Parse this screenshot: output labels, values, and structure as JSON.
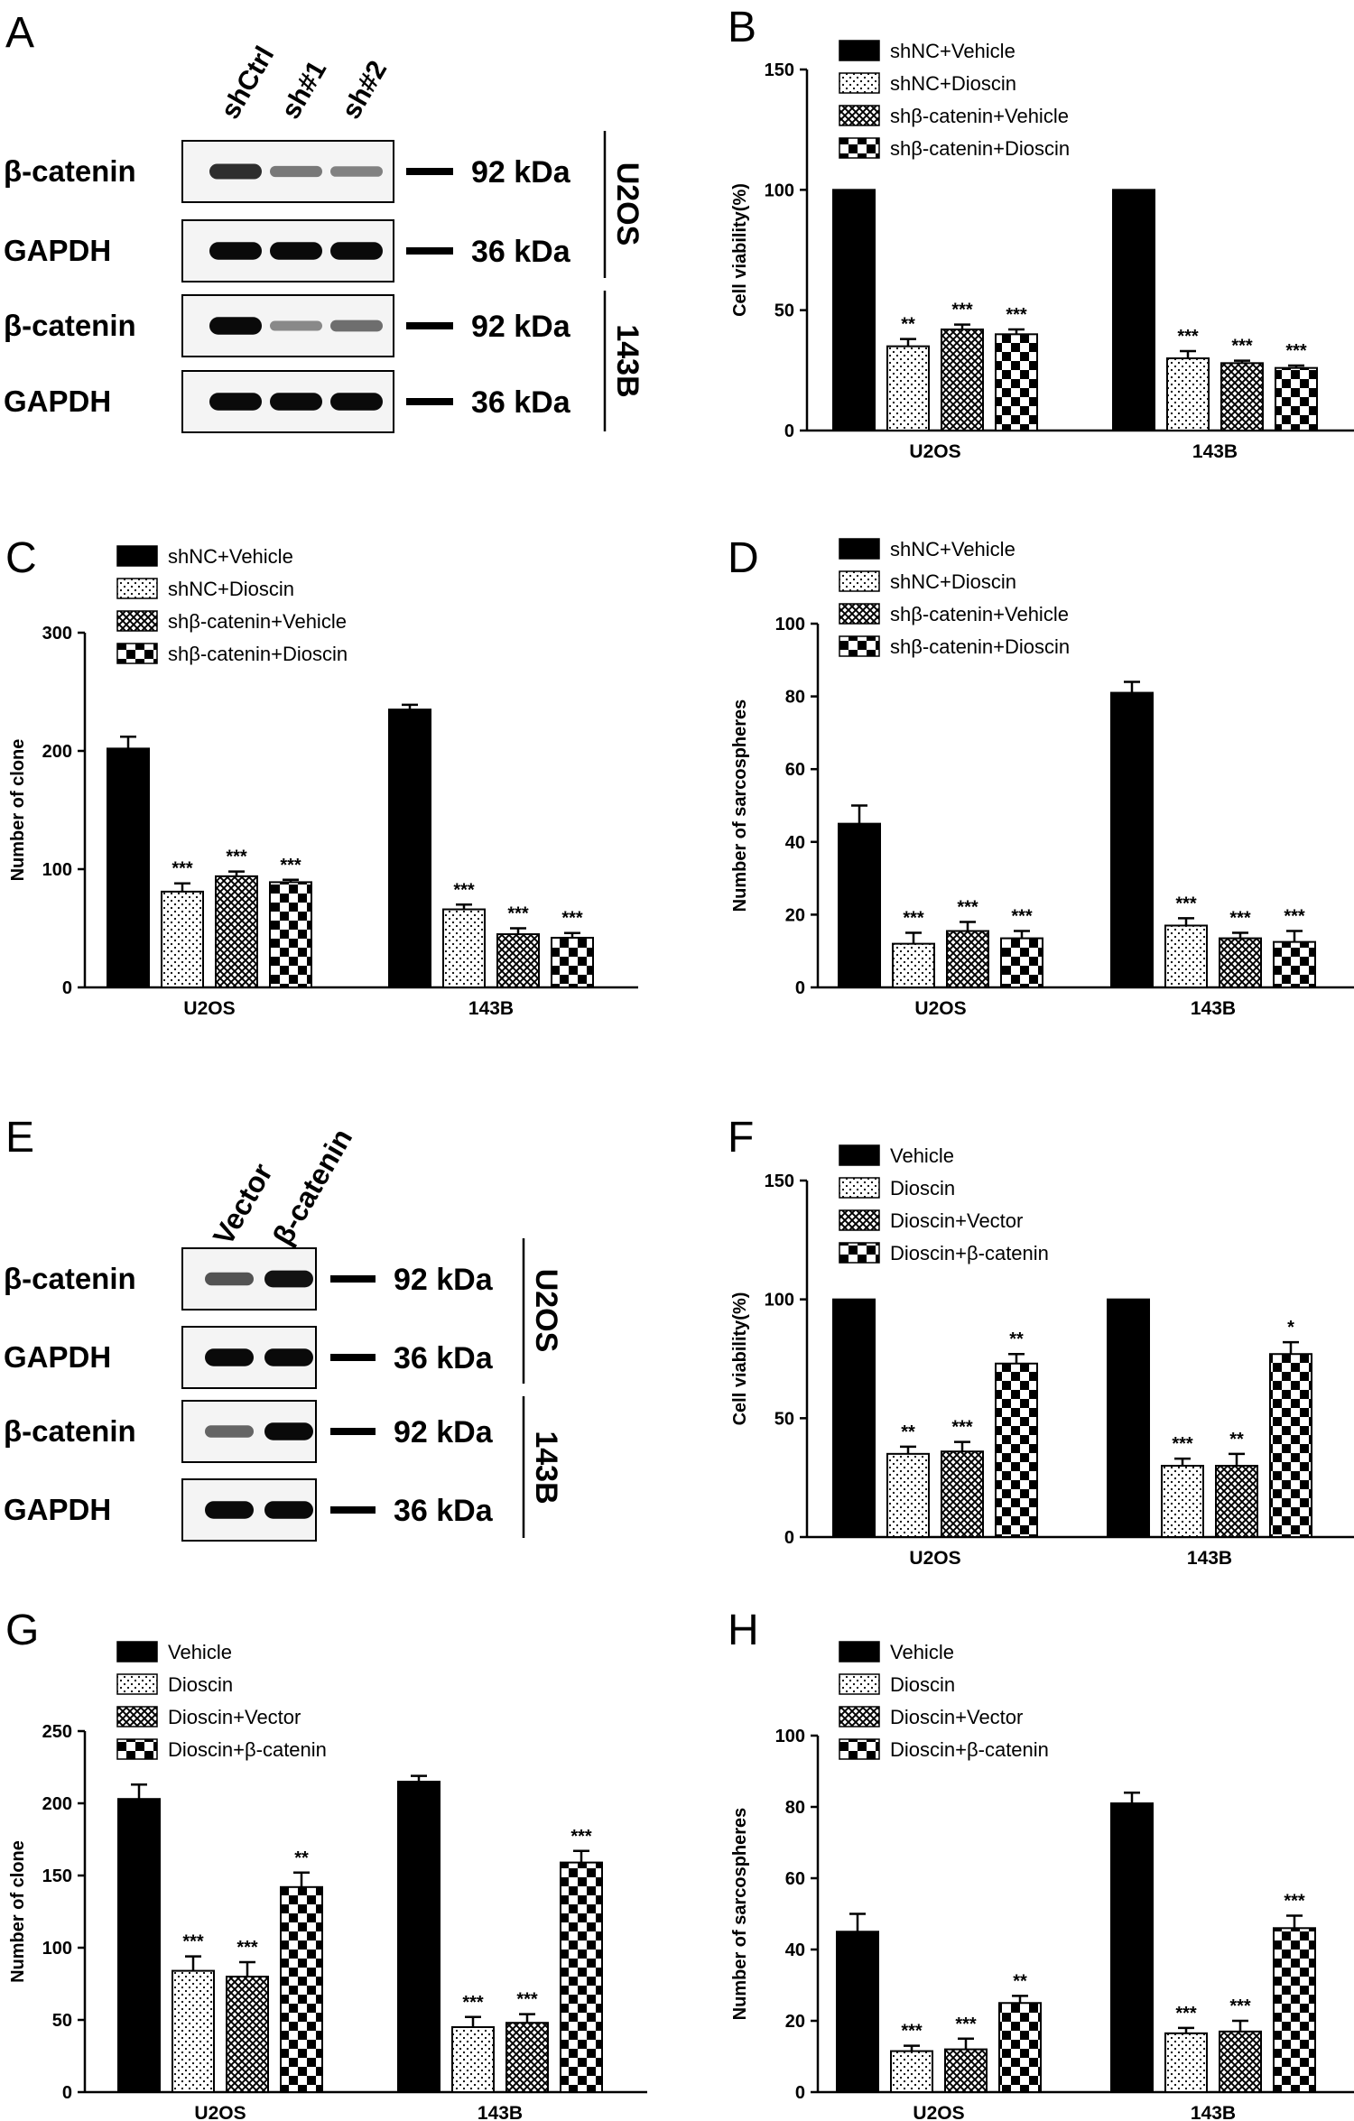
{
  "panel_letters": [
    "A",
    "B",
    "C",
    "D",
    "E",
    "F",
    "G",
    "H"
  ],
  "legend_knockdown": [
    "shNC+Vehicle",
    "shNC+Dioscin",
    "shβ-catenin+Vehicle",
    "shβ-catenin+Dioscin"
  ],
  "legend_overexpression": [
    "Vehicle",
    "Dioscin",
    "Dioscin+Vector",
    "Dioscin+β-catenin"
  ],
  "blots": {
    "A": {
      "lanes": [
        "shCtrl",
        "sh#1",
        "sh#2"
      ],
      "rows": [
        {
          "label": "β-catenin",
          "kda": "92 kDa",
          "bands": [
            0.75,
            0.35,
            0.3
          ]
        },
        {
          "label": "GAPDH",
          "kda": "36 kDa",
          "bands": [
            0.95,
            0.95,
            0.95
          ]
        },
        {
          "label": "β-catenin",
          "kda": "92 kDa",
          "bands": [
            0.95,
            0.25,
            0.4
          ]
        },
        {
          "label": "GAPDH",
          "kda": "36 kDa",
          "bands": [
            0.95,
            0.95,
            0.95
          ]
        }
      ],
      "cell_lines": [
        "U2OS",
        "143B"
      ]
    },
    "E": {
      "lanes": [
        "Vector",
        "β-catenin"
      ],
      "rows": [
        {
          "label": "β-catenin",
          "kda": "92 kDa",
          "bands": [
            0.55,
            0.9
          ]
        },
        {
          "label": "GAPDH",
          "kda": "36 kDa",
          "bands": [
            0.95,
            0.95
          ]
        },
        {
          "label": "β-catenin",
          "kda": "92 kDa",
          "bands": [
            0.45,
            0.95
          ]
        },
        {
          "label": "GAPDH",
          "kda": "36 kDa",
          "bands": [
            0.95,
            0.95
          ]
        }
      ],
      "cell_lines": [
        "U2OS",
        "143B"
      ]
    }
  },
  "chart_data": [
    {
      "panel": "B",
      "type": "bar",
      "ylabel": "Cell viability(%)",
      "ylim": [
        0,
        150
      ],
      "yticks": [
        0,
        50,
        100,
        150
      ],
      "categories": [
        "U2OS",
        "143B"
      ],
      "legend": "knockdown",
      "series": [
        {
          "name": "shNC+Vehicle",
          "values": [
            100,
            100
          ],
          "errors": [
            0,
            0
          ],
          "sig": [
            "",
            ""
          ]
        },
        {
          "name": "shNC+Dioscin",
          "values": [
            35,
            30
          ],
          "errors": [
            3,
            3
          ],
          "sig": [
            "**",
            "***"
          ]
        },
        {
          "name": "shβ-catenin+Vehicle",
          "values": [
            42,
            28
          ],
          "errors": [
            2,
            1
          ],
          "sig": [
            "***",
            "***"
          ]
        },
        {
          "name": "shβ-catenin+Dioscin",
          "values": [
            40,
            26
          ],
          "errors": [
            2,
            1
          ],
          "sig": [
            "***",
            "***"
          ]
        }
      ]
    },
    {
      "panel": "C",
      "type": "bar",
      "ylabel": "Number of clone",
      "ylim": [
        0,
        300
      ],
      "yticks": [
        0,
        100,
        200,
        300
      ],
      "categories": [
        "U2OS",
        "143B"
      ],
      "legend": "knockdown",
      "series": [
        {
          "name": "shNC+Vehicle",
          "values": [
            202,
            235
          ],
          "errors": [
            10,
            4
          ],
          "sig": [
            "",
            ""
          ]
        },
        {
          "name": "shNC+Dioscin",
          "values": [
            81,
            66
          ],
          "errors": [
            7,
            4
          ],
          "sig": [
            "***",
            "***"
          ]
        },
        {
          "name": "shβ-catenin+Vehicle",
          "values": [
            94,
            45
          ],
          "errors": [
            4,
            5
          ],
          "sig": [
            "***",
            "***"
          ]
        },
        {
          "name": "shβ-catenin+Dioscin",
          "values": [
            89,
            42
          ],
          "errors": [
            2,
            4
          ],
          "sig": [
            "***",
            "***"
          ]
        }
      ]
    },
    {
      "panel": "D",
      "type": "bar",
      "ylabel": "Number of sarcospheres",
      "ylim": [
        0,
        100
      ],
      "yticks": [
        0,
        20,
        40,
        60,
        80,
        100
      ],
      "categories": [
        "U2OS",
        "143B"
      ],
      "legend": "knockdown",
      "series": [
        {
          "name": "shNC+Vehicle",
          "values": [
            45,
            81
          ],
          "errors": [
            5,
            3
          ],
          "sig": [
            "",
            ""
          ]
        },
        {
          "name": "shNC+Dioscin",
          "values": [
            12,
            17
          ],
          "errors": [
            3,
            2
          ],
          "sig": [
            "***",
            "***"
          ]
        },
        {
          "name": "shβ-catenin+Vehicle",
          "values": [
            15.5,
            13.5
          ],
          "errors": [
            2.5,
            1.5
          ],
          "sig": [
            "***",
            "***"
          ]
        },
        {
          "name": "shβ-catenin+Dioscin",
          "values": [
            13.5,
            12.5
          ],
          "errors": [
            2,
            3
          ],
          "sig": [
            "***",
            "***"
          ]
        }
      ]
    },
    {
      "panel": "F",
      "type": "bar",
      "ylabel": "Cell viability(%)",
      "ylim": [
        0,
        150
      ],
      "yticks": [
        0,
        50,
        100,
        150
      ],
      "categories": [
        "U2OS",
        "143B"
      ],
      "legend": "overexpression",
      "series": [
        {
          "name": "Vehicle",
          "values": [
            100,
            100
          ],
          "errors": [
            0,
            0
          ],
          "sig": [
            "",
            ""
          ]
        },
        {
          "name": "Dioscin",
          "values": [
            35,
            30
          ],
          "errors": [
            3,
            3
          ],
          "sig": [
            "**",
            "***"
          ]
        },
        {
          "name": "Dioscin+Vector",
          "values": [
            36,
            30
          ],
          "errors": [
            4,
            5
          ],
          "sig": [
            "***",
            "**"
          ]
        },
        {
          "name": "Dioscin+β-catenin",
          "values": [
            73,
            77
          ],
          "errors": [
            4,
            5
          ],
          "sig": [
            "**",
            "*"
          ]
        }
      ]
    },
    {
      "panel": "G",
      "type": "bar",
      "ylabel": "Number of clone",
      "ylim": [
        0,
        250
      ],
      "yticks": [
        0,
        50,
        100,
        150,
        200,
        250
      ],
      "categories": [
        "U2OS",
        "143B"
      ],
      "legend": "overexpression",
      "series": [
        {
          "name": "Vehicle",
          "values": [
            203,
            215
          ],
          "errors": [
            10,
            4
          ],
          "sig": [
            "",
            ""
          ]
        },
        {
          "name": "Dioscin",
          "values": [
            84,
            45
          ],
          "errors": [
            10,
            7
          ],
          "sig": [
            "***",
            "***"
          ]
        },
        {
          "name": "Dioscin+Vector",
          "values": [
            80,
            48
          ],
          "errors": [
            10,
            6
          ],
          "sig": [
            "***",
            "***"
          ]
        },
        {
          "name": "Dioscin+β-catenin",
          "values": [
            142,
            159
          ],
          "errors": [
            10,
            8
          ],
          "sig": [
            "**",
            "***"
          ]
        }
      ]
    },
    {
      "panel": "H",
      "type": "bar",
      "ylabel": "Number of sarcospheres",
      "ylim": [
        0,
        100
      ],
      "yticks": [
        0,
        20,
        40,
        60,
        80,
        100
      ],
      "categories": [
        "U2OS",
        "143B"
      ],
      "legend": "overexpression",
      "series": [
        {
          "name": "Vehicle",
          "values": [
            45,
            81
          ],
          "errors": [
            5,
            3
          ],
          "sig": [
            "",
            ""
          ]
        },
        {
          "name": "Dioscin",
          "values": [
            11.5,
            16.5
          ],
          "errors": [
            1.5,
            1.5
          ],
          "sig": [
            "***",
            "***"
          ]
        },
        {
          "name": "Dioscin+Vector",
          "values": [
            12,
            17
          ],
          "errors": [
            3,
            3
          ],
          "sig": [
            "***",
            "***"
          ]
        },
        {
          "name": "Dioscin+β-catenin",
          "values": [
            25,
            46
          ],
          "errors": [
            2,
            3.5
          ],
          "sig": [
            "**",
            "***"
          ]
        }
      ]
    }
  ]
}
